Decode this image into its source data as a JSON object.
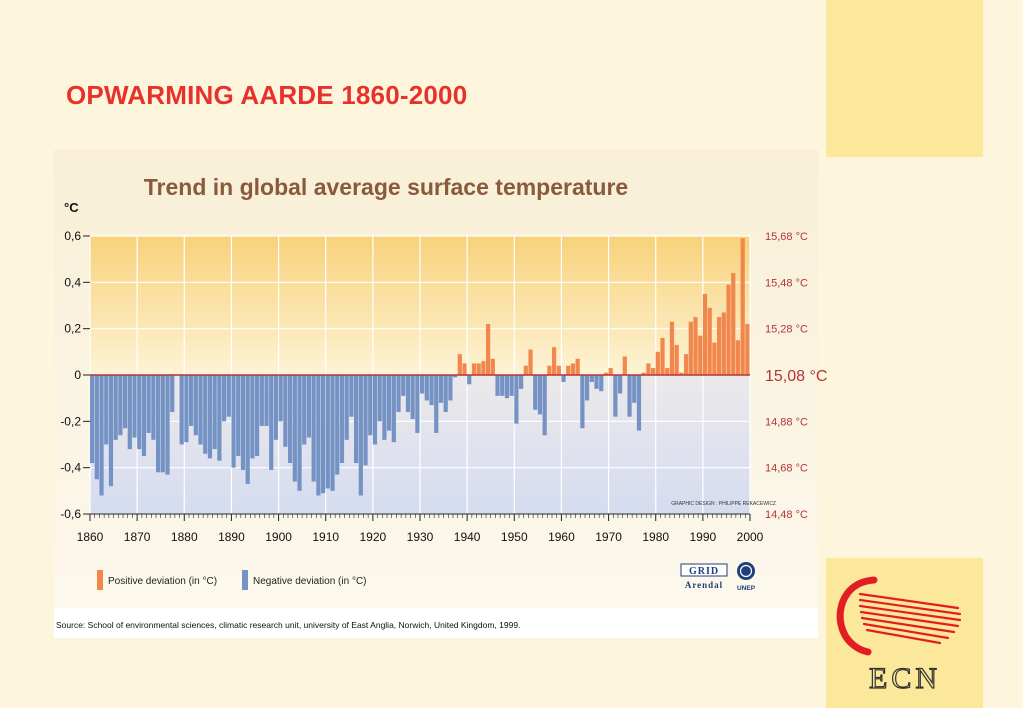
{
  "slide": {
    "title": "OPWARMING AARDE 1860-2000"
  },
  "logo": {
    "text": "ECN"
  },
  "colors": {
    "slide_background": "#fdf6dc",
    "accent_yellow": "#fbe89a",
    "title_red": "#e8312b",
    "positive": "#f2874e",
    "negative": "#7493c4",
    "baseline": "#b5343a",
    "right_label": "#b5343a"
  },
  "chart_data": {
    "type": "bar",
    "title": "Trend in global average surface temperature",
    "y_unit_label": "°C",
    "ylim": [
      -0.6,
      0.6
    ],
    "yticks": [
      "0,6",
      "0,4",
      "0,2",
      "0",
      "-0,2",
      "-0,4",
      "-0,6"
    ],
    "yticks_values": [
      0.6,
      0.4,
      0.2,
      0,
      -0.2,
      -0.4,
      -0.6
    ],
    "right_axis_labels": [
      "15,68 °C",
      "15,48 °C",
      "15,28 °C",
      "15,08 °C",
      "14,88 °C",
      "14,68 °C",
      "14,48 °C"
    ],
    "xlim": [
      1860,
      2000
    ],
    "xticks": [
      "1860",
      "1870",
      "1880",
      "1890",
      "1900",
      "1910",
      "1920",
      "1930",
      "1940",
      "1950",
      "1960",
      "1970",
      "1980",
      "1990",
      "2000"
    ],
    "xticks_values": [
      1860,
      1870,
      1880,
      1890,
      1900,
      1910,
      1920,
      1930,
      1940,
      1950,
      1960,
      1970,
      1980,
      1990,
      2000
    ],
    "grid": true,
    "legend": [
      {
        "label": "Positive deviation (in °C)",
        "color": "#f2874e"
      },
      {
        "label": "Negative deviation (in °C)",
        "color": "#7493c4"
      }
    ],
    "credit": "GRAPHIC DESIGN : PHILIPPE REKACEWICZ",
    "source": "Source: School of environmental sciences, climatic research unit, university of East Anglia, Norwich, United Kingdom, 1999.",
    "agency_logos": {
      "grid": "GRID",
      "grid_sub": "Arendal",
      "unep": "UNEP"
    },
    "series": [
      {
        "name": "Deviation",
        "x": [
          1860,
          1861,
          1862,
          1863,
          1864,
          1865,
          1866,
          1867,
          1868,
          1869,
          1870,
          1871,
          1872,
          1873,
          1874,
          1875,
          1876,
          1877,
          1878,
          1879,
          1880,
          1881,
          1882,
          1883,
          1884,
          1885,
          1886,
          1887,
          1888,
          1889,
          1890,
          1891,
          1892,
          1893,
          1894,
          1895,
          1896,
          1897,
          1898,
          1899,
          1900,
          1901,
          1902,
          1903,
          1904,
          1905,
          1906,
          1907,
          1908,
          1909,
          1910,
          1911,
          1912,
          1913,
          1914,
          1915,
          1916,
          1917,
          1918,
          1919,
          1920,
          1921,
          1922,
          1923,
          1924,
          1925,
          1926,
          1927,
          1928,
          1929,
          1930,
          1931,
          1932,
          1933,
          1934,
          1935,
          1936,
          1937,
          1938,
          1939,
          1940,
          1941,
          1942,
          1943,
          1944,
          1945,
          1946,
          1947,
          1948,
          1949,
          1950,
          1951,
          1952,
          1953,
          1954,
          1955,
          1956,
          1957,
          1958,
          1959,
          1960,
          1961,
          1962,
          1963,
          1964,
          1965,
          1966,
          1967,
          1968,
          1969,
          1970,
          1971,
          1972,
          1973,
          1974,
          1975,
          1976,
          1977,
          1978,
          1979,
          1980,
          1981,
          1982,
          1983,
          1984,
          1985,
          1986,
          1987,
          1988,
          1989,
          1990,
          1991,
          1992,
          1993,
          1994,
          1995,
          1996,
          1997,
          1998,
          1999
        ],
        "values": [
          -0.38,
          -0.45,
          -0.52,
          -0.3,
          -0.48,
          -0.28,
          -0.26,
          -0.23,
          -0.32,
          -0.27,
          -0.32,
          -0.35,
          -0.25,
          -0.28,
          -0.42,
          -0.42,
          -0.43,
          -0.16,
          0.0,
          -0.3,
          -0.29,
          -0.22,
          -0.26,
          -0.3,
          -0.34,
          -0.36,
          -0.32,
          -0.37,
          -0.2,
          -0.18,
          -0.4,
          -0.35,
          -0.41,
          -0.47,
          -0.36,
          -0.35,
          -0.22,
          -0.22,
          -0.41,
          -0.28,
          -0.2,
          -0.31,
          -0.38,
          -0.46,
          -0.5,
          -0.3,
          -0.27,
          -0.46,
          -0.52,
          -0.51,
          -0.49,
          -0.5,
          -0.43,
          -0.38,
          -0.28,
          -0.18,
          -0.38,
          -0.52,
          -0.39,
          -0.26,
          -0.3,
          -0.2,
          -0.28,
          -0.24,
          -0.29,
          -0.16,
          -0.09,
          -0.16,
          -0.19,
          -0.25,
          -0.08,
          -0.11,
          -0.13,
          -0.25,
          -0.12,
          -0.16,
          -0.11,
          -0.01,
          0.09,
          0.05,
          -0.04,
          0.05,
          0.05,
          0.06,
          0.22,
          0.07,
          -0.09,
          -0.09,
          -0.1,
          -0.09,
          -0.21,
          -0.06,
          0.04,
          0.11,
          -0.15,
          -0.17,
          -0.26,
          0.04,
          0.12,
          0.04,
          -0.03,
          0.04,
          0.05,
          0.07,
          -0.23,
          -0.11,
          -0.03,
          -0.06,
          -0.07,
          0.01,
          0.03,
          -0.18,
          -0.08,
          0.08,
          -0.18,
          -0.12,
          -0.24,
          0.01,
          0.05,
          0.03,
          0.1,
          0.16,
          0.03,
          0.23,
          0.13,
          0.01,
          0.09,
          0.23,
          0.25,
          0.17,
          0.35,
          0.29,
          0.14,
          0.25,
          0.27,
          0.39,
          0.44,
          0.15,
          0.59,
          0.22
        ]
      }
    ]
  }
}
